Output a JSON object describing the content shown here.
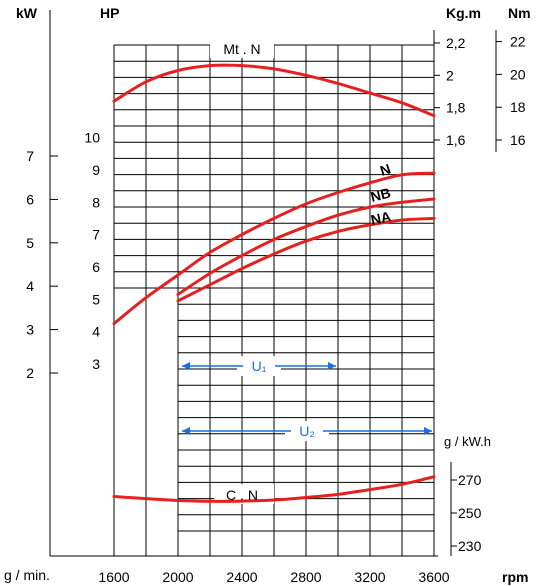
{
  "chart_data": {
    "type": "line",
    "title": "",
    "x": {
      "label": "rpm",
      "left_label": "g / min.",
      "ticks": [
        1600,
        2000,
        2400,
        2800,
        3200,
        3600
      ],
      "range": [
        1600,
        3600
      ]
    },
    "axes": {
      "kw": {
        "label": "kW",
        "ticks": [
          2,
          3,
          4,
          5,
          6,
          7
        ]
      },
      "hp": {
        "label": "HP",
        "ticks": [
          3,
          4,
          5,
          6,
          7,
          8,
          9,
          10
        ]
      },
      "kgm": {
        "label": "Kg.m",
        "ticks": [
          "1,6",
          "1,8",
          "2",
          "2,2"
        ],
        "values": [
          1.6,
          1.8,
          2.0,
          2.2
        ]
      },
      "nm": {
        "label": "Nm",
        "ticks": [
          16,
          18,
          20,
          22
        ]
      },
      "consumption": {
        "label": "g / kW.h",
        "ticks": [
          230,
          250,
          270
        ]
      }
    },
    "series": [
      {
        "name": "Mt . N",
        "unit": "Kg.m",
        "x": [
          1600,
          1800,
          2000,
          2200,
          2400,
          2600,
          2800,
          3000,
          3200,
          3400,
          3600
        ],
        "y": [
          1.84,
          1.96,
          2.03,
          2.06,
          2.06,
          2.04,
          2.0,
          1.95,
          1.89,
          1.83,
          1.75
        ]
      },
      {
        "name": "N",
        "unit": "HP",
        "x": [
          1600,
          1800,
          2000,
          2200,
          2400,
          2600,
          2800,
          3000,
          3200,
          3400,
          3600
        ],
        "y": [
          4.25,
          5.05,
          5.75,
          6.45,
          7.0,
          7.5,
          7.95,
          8.3,
          8.6,
          8.85,
          8.9
        ]
      },
      {
        "name": "NB",
        "unit": "HP",
        "x": [
          2000,
          2200,
          2400,
          2600,
          2800,
          3000,
          3200,
          3400,
          3600
        ],
        "y": [
          5.15,
          5.8,
          6.35,
          6.85,
          7.25,
          7.6,
          7.85,
          8.0,
          8.1
        ]
      },
      {
        "name": "NA",
        "unit": "HP",
        "x": [
          2000,
          2200,
          2400,
          2600,
          2800,
          3000,
          3200,
          3400,
          3600
        ],
        "y": [
          4.95,
          5.45,
          5.95,
          6.4,
          6.8,
          7.1,
          7.3,
          7.45,
          7.5
        ]
      },
      {
        "name": "C . N",
        "unit": "g / kW.h",
        "x": [
          1600,
          1800,
          2000,
          2200,
          2400,
          2600,
          2800,
          3000,
          3200,
          3400,
          3600
        ],
        "y": [
          260,
          258.7,
          257.6,
          257.1,
          257.2,
          257.9,
          259.4,
          261.3,
          264.2,
          267.4,
          272
        ]
      }
    ],
    "ranges": [
      {
        "label": "U₁",
        "from": 2000,
        "to": 3000
      },
      {
        "label": "U₂",
        "from": 2000,
        "to": 3600
      }
    ],
    "grid": true,
    "colors": {
      "curves": "#e52020",
      "ranges": "#1e6fdc",
      "grid": "#000000"
    }
  }
}
